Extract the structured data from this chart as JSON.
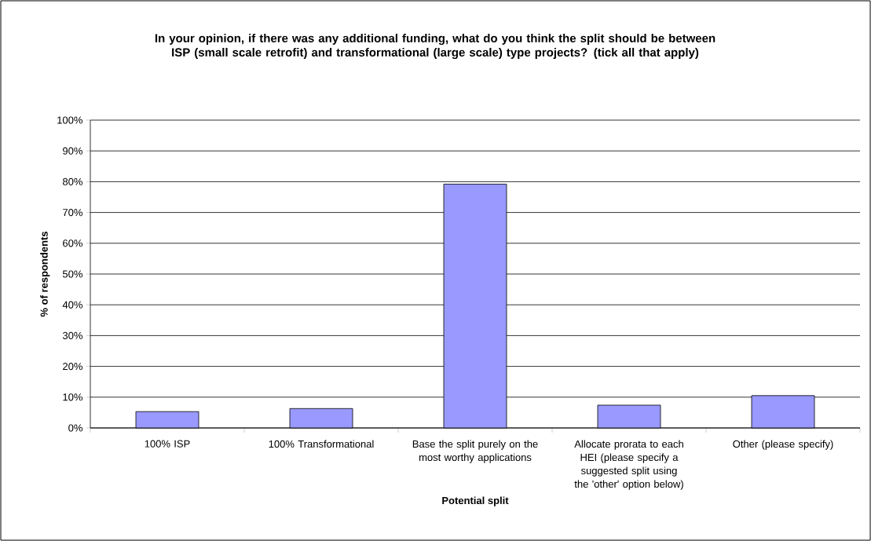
{
  "chart_data": {
    "type": "bar",
    "title": "In your opinion, if there was any additional funding, what do you think the split should be between ISP (small scale retrofit) and transformational (large scale) type projects? (tick all that apply)",
    "xlabel": "Potential split",
    "ylabel": "% of respondents",
    "categories": [
      "100% ISP",
      "100% Transformational",
      "Base the split purely on the most worthy applications",
      "Allocate prorata to each HEI (please specify a suggested split using the 'other' option below)",
      "Other (please specify)"
    ],
    "values": [
      5.3,
      6.3,
      79.2,
      7.4,
      10.5
    ],
    "color": "#9999ff",
    "ylim": [
      0,
      100
    ],
    "yticks": [
      {
        "value": 0,
        "label": "0%"
      },
      {
        "value": 10,
        "label": "10%"
      },
      {
        "value": 20,
        "label": "20%"
      },
      {
        "value": 30,
        "label": "30%"
      },
      {
        "value": 40,
        "label": "40%"
      },
      {
        "value": 50,
        "label": "50%"
      },
      {
        "value": 60,
        "label": "60%"
      },
      {
        "value": 70,
        "label": "70%"
      },
      {
        "value": 80,
        "label": "80%"
      },
      {
        "value": 90,
        "label": "90%"
      },
      {
        "value": 100,
        "label": "100%"
      }
    ],
    "grid": "y"
  }
}
